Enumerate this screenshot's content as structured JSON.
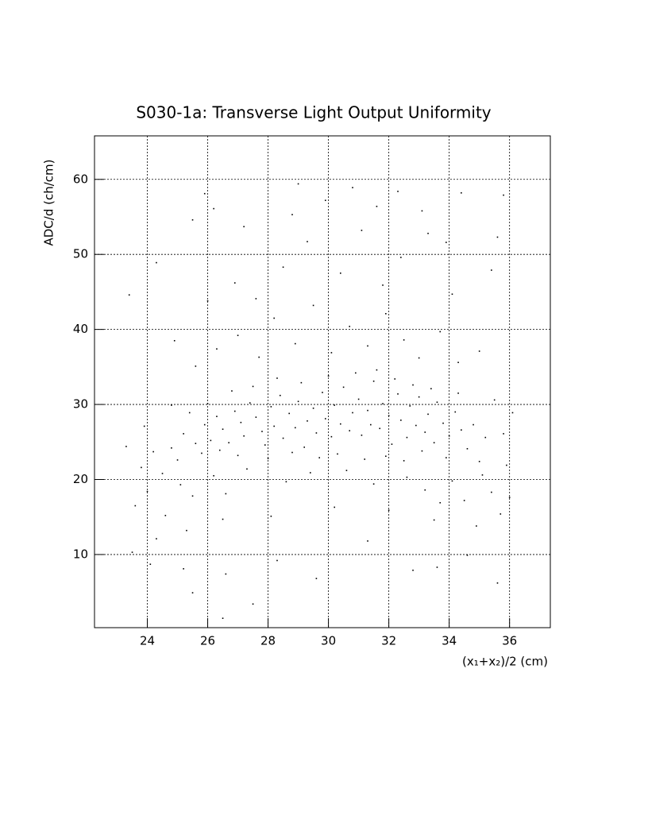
{
  "chart_data": {
    "type": "scatter",
    "title": "S030-1a: Transverse Light Output Uniformity",
    "x_label": "(x₁+x₂)/2 (cm)",
    "y_label": "ADC/d (ch/cm)",
    "color": "#000000",
    "grid": true,
    "xlim": [
      22.25,
      37.35
    ],
    "ylim": [
      0.25,
      65.8
    ],
    "xticks": [
      24,
      26,
      28,
      30,
      32,
      34,
      36
    ],
    "yticks": [
      10,
      20,
      30,
      40,
      50,
      60
    ],
    "x": [
      25.2,
      25.6,
      25.9,
      26.1,
      26.3,
      26.5,
      26.7,
      26.9,
      27.1,
      27.2,
      27.4,
      27.6,
      27.8,
      27.9,
      28.1,
      28.2,
      28.4,
      28.5,
      28.7,
      28.9,
      29.0,
      29.2,
      29.3,
      29.5,
      29.6,
      29.8,
      29.9,
      30.1,
      30.2,
      30.4,
      30.5,
      30.7,
      30.8,
      31.0,
      31.1,
      31.3,
      31.4,
      31.5,
      31.7,
      31.8,
      32.0,
      32.1,
      32.3,
      32.4,
      32.6,
      32.7,
      32.9,
      33.0,
      33.2,
      33.3,
      33.5,
      33.6,
      33.8,
      34.0,
      34.2,
      34.4,
      24.8,
      25.0,
      25.4,
      25.8,
      26.0,
      26.4,
      26.8,
      27.0,
      27.5,
      28.0,
      28.3,
      28.8,
      29.1,
      29.7,
      30.0,
      30.3,
      30.9,
      31.2,
      31.6,
      31.9,
      32.2,
      32.5,
      32.8,
      33.1,
      33.4,
      33.9,
      34.3,
      34.6,
      34.8,
      35.0,
      35.2,
      24.5,
      24.2,
      24.0,
      23.8,
      23.6,
      24.6,
      25.1,
      25.5,
      26.2,
      26.6,
      27.3,
      28.6,
      29.4,
      30.6,
      31.5,
      32.6,
      33.2,
      33.7,
      34.1,
      34.5,
      35.1,
      35.4,
      35.7,
      36.0,
      35.9,
      34.9,
      33.5,
      32.0,
      30.2,
      28.1,
      26.5,
      25.3,
      24.3,
      23.5,
      24.1,
      25.2,
      26.6,
      28.3,
      29.6,
      31.3,
      32.8,
      34.6,
      35.6,
      33.6,
      27.5,
      26.5,
      25.5,
      25.6,
      26.3,
      27.0,
      27.7,
      28.2,
      28.9,
      29.5,
      30.1,
      30.7,
      31.3,
      31.9,
      32.5,
      33.0,
      33.7,
      34.3,
      35.0,
      24.9,
      26.0,
      26.9,
      27.6,
      28.5,
      29.3,
      30.4,
      31.1,
      31.8,
      32.4,
      33.3,
      34.1,
      35.4,
      23.4,
      24.3,
      25.5,
      26.2,
      27.2,
      28.8,
      29.9,
      30.8,
      31.6,
      32.3,
      33.1,
      34.4,
      35.8,
      25.9,
      29.0,
      33.9,
      35.6,
      24.8,
      23.9,
      35.5,
      36.1,
      35.8,
      23.3
    ],
    "values": [
      26.1,
      24.8,
      27.3,
      25.2,
      28.4,
      26.7,
      24.9,
      29.1,
      27.6,
      25.8,
      30.2,
      28.3,
      26.4,
      24.6,
      29.7,
      27.1,
      31.2,
      25.5,
      28.8,
      26.9,
      30.4,
      24.3,
      27.8,
      29.5,
      26.2,
      31.6,
      28.1,
      25.7,
      29.9,
      27.4,
      32.3,
      26.5,
      28.9,
      30.7,
      25.9,
      29.2,
      27.3,
      33.1,
      26.8,
      30.1,
      28.5,
      24.7,
      31.4,
      27.9,
      25.6,
      29.8,
      27.2,
      31.0,
      26.3,
      28.7,
      24.9,
      30.3,
      27.5,
      25.8,
      29.0,
      26.6,
      24.2,
      22.6,
      28.9,
      23.5,
      30.1,
      23.9,
      31.8,
      23.2,
      32.4,
      22.8,
      33.5,
      23.6,
      32.9,
      22.9,
      33.8,
      23.4,
      34.2,
      22.7,
      34.6,
      23.1,
      33.4,
      22.5,
      32.6,
      23.8,
      32.1,
      22.9,
      31.5,
      24.1,
      27.3,
      22.4,
      25.6,
      20.8,
      23.7,
      18.4,
      21.6,
      16.5,
      15.2,
      19.3,
      17.8,
      20.5,
      18.1,
      21.4,
      19.7,
      20.9,
      21.2,
      19.4,
      20.3,
      18.6,
      16.9,
      19.8,
      17.2,
      20.6,
      18.3,
      15.4,
      17.6,
      21.9,
      13.8,
      14.6,
      15.9,
      16.3,
      15.1,
      14.7,
      13.2,
      12.1,
      10.3,
      8.7,
      8.1,
      7.4,
      9.2,
      6.8,
      11.8,
      7.9,
      9.9,
      6.2,
      8.3,
      3.4,
      1.5,
      4.9,
      35.1,
      37.4,
      39.2,
      36.3,
      41.5,
      38.1,
      43.2,
      36.9,
      40.4,
      37.8,
      42.1,
      38.6,
      36.2,
      39.7,
      35.6,
      37.1,
      38.5,
      43.8,
      46.2,
      44.1,
      48.3,
      51.7,
      47.5,
      53.2,
      45.9,
      49.6,
      52.8,
      44.7,
      47.9,
      44.6,
      48.9,
      54.6,
      56.1,
      53.7,
      55.3,
      57.2,
      58.9,
      56.4,
      58.4,
      55.8,
      58.2,
      57.9,
      58.1,
      59.4,
      51.6,
      52.3,
      29.9,
      27.1,
      30.6,
      28.9,
      26.1,
      24.4
    ]
  }
}
